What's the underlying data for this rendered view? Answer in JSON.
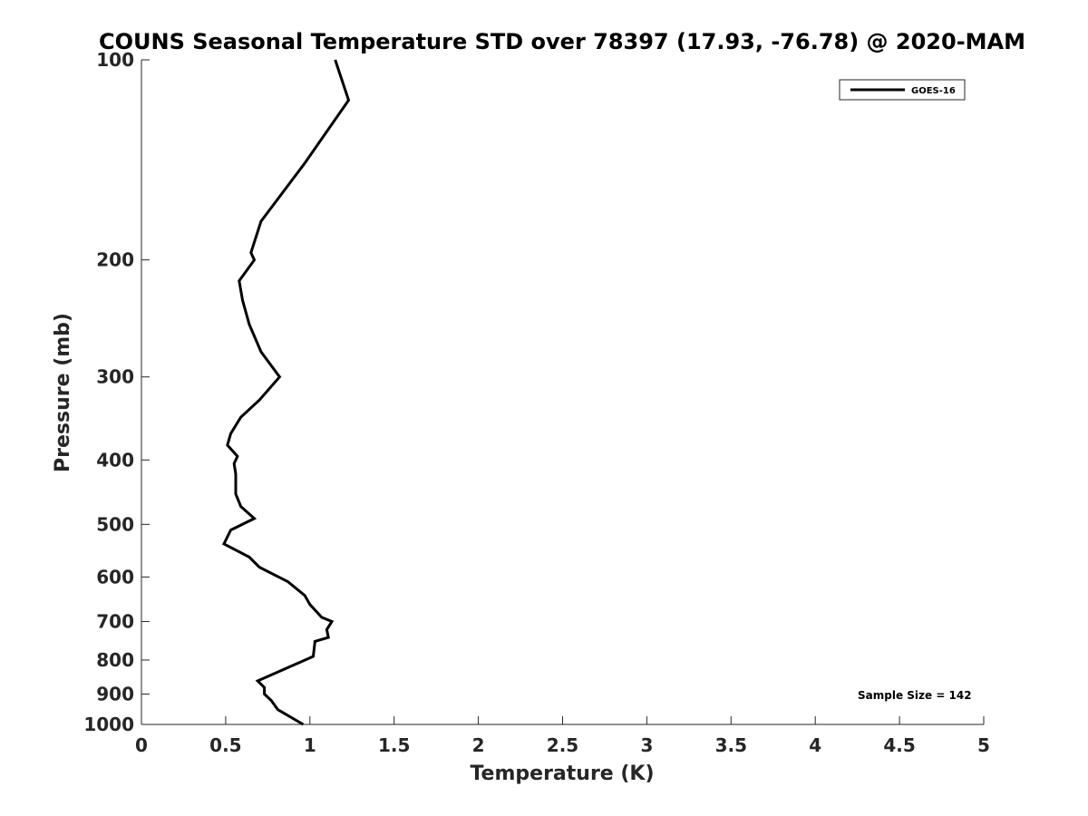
{
  "chart_data": {
    "type": "line",
    "title": "COUNS Seasonal Temperature STD over 78397 (17.93, -76.78) @ 2020-MAM",
    "xlabel": "Temperature (K)",
    "ylabel": "Pressure (mb)",
    "xlim": [
      0,
      5
    ],
    "ylim": [
      100,
      1000
    ],
    "y_scale": "log",
    "y_reversed": true,
    "x_ticks": [
      0,
      0.5,
      1,
      1.5,
      2,
      2.5,
      3,
      3.5,
      4,
      4.5,
      5
    ],
    "x_tick_labels": [
      "0",
      "0.5",
      "1",
      "1.5",
      "2",
      "2.5",
      "3",
      "3.5",
      "4",
      "4.5",
      "5"
    ],
    "y_ticks": [
      100,
      200,
      300,
      400,
      500,
      600,
      700,
      800,
      900,
      1000
    ],
    "y_tick_labels": [
      "100",
      "200",
      "300",
      "400",
      "500",
      "600",
      "700",
      "800",
      "900",
      "1000"
    ],
    "grid": false,
    "legend_position": "top-right",
    "series": [
      {
        "name": "GOES-16",
        "color": "#000000",
        "x": [
          1.15,
          1.23,
          0.97,
          0.71,
          0.65,
          0.67,
          0.58,
          0.6,
          0.64,
          0.71,
          0.82,
          0.7,
          0.59,
          0.53,
          0.51,
          0.57,
          0.55,
          0.56,
          0.56,
          0.59,
          0.67,
          0.53,
          0.49,
          0.64,
          0.7,
          0.87,
          0.97,
          1.0,
          1.07,
          1.13,
          1.1,
          1.11,
          1.03,
          1.02,
          0.69,
          0.73,
          0.73,
          0.77,
          0.81,
          0.96
        ],
        "y": [
          100,
          115,
          143,
          175,
          195,
          200,
          215,
          230,
          250,
          275,
          300,
          325,
          345,
          365,
          380,
          395,
          405,
          420,
          450,
          470,
          490,
          510,
          535,
          560,
          580,
          610,
          640,
          660,
          690,
          700,
          720,
          740,
          750,
          790,
          860,
          880,
          900,
          920,
          950,
          1000
        ]
      }
    ],
    "annotations": [
      "Sample Size = 142"
    ]
  }
}
